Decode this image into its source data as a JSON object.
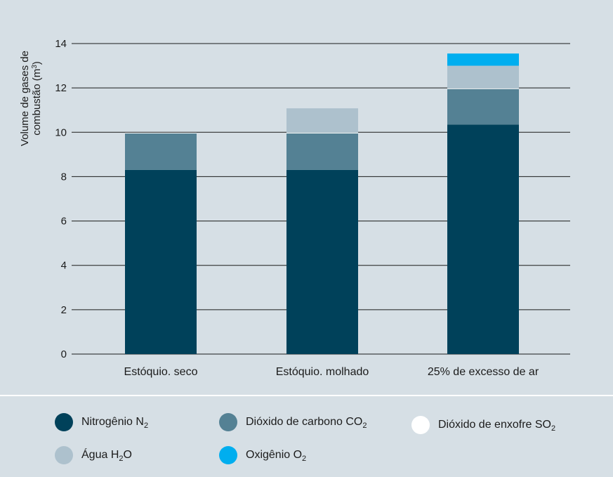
{
  "chart_data": {
    "type": "bar",
    "stacked": true,
    "ylabel_line1": "Volume de gases de",
    "ylabel_line2_pre": "combustão (m",
    "ylabel_line2_sup": "3",
    "ylabel_line2_post": ")",
    "ylim": [
      0,
      14
    ],
    "yticks": [
      "0",
      "2",
      "4",
      "6",
      "8",
      "10",
      "12",
      "14"
    ],
    "grid": true,
    "legend_position": "bottom",
    "categories": [
      "Estóquio. seco",
      "Estóquio. molhado",
      "25% de excesso de ar"
    ],
    "series": [
      {
        "name": "Nitrogênio N2",
        "color": "#00415a",
        "values": [
          8.3,
          8.3,
          10.35
        ]
      },
      {
        "name": "Dióxido de carbono CO2",
        "color": "#548194",
        "values": [
          1.65,
          1.65,
          1.6
        ]
      },
      {
        "name": "Dióxido de enxofre SO2",
        "color": "#ffffff",
        "values": [
          0.03,
          0.03,
          0.03
        ]
      },
      {
        "name": "Água H2O",
        "color": "#adc1cd",
        "values": [
          0,
          1.1,
          1.02
        ]
      },
      {
        "name": "Oxigênio O2",
        "color": "#00aeef",
        "values": [
          0,
          0,
          0.55
        ]
      }
    ]
  },
  "legend": [
    {
      "base": "Nitrogênio N",
      "sub": "2",
      "tail": "",
      "color": "#00415a"
    },
    {
      "base": "Dióxido de carbono CO",
      "sub": "2",
      "tail": "",
      "color": "#548194"
    },
    {
      "base": "Dióxido de enxofre SO",
      "sub": "2",
      "tail": "",
      "color": "#ffffff"
    },
    {
      "base": "Água H",
      "sub": "2",
      "tail": "O",
      "color": "#adc1cd"
    },
    {
      "base": "Oxigênio O",
      "sub": "2",
      "tail": "",
      "color": "#00aeef"
    }
  ]
}
